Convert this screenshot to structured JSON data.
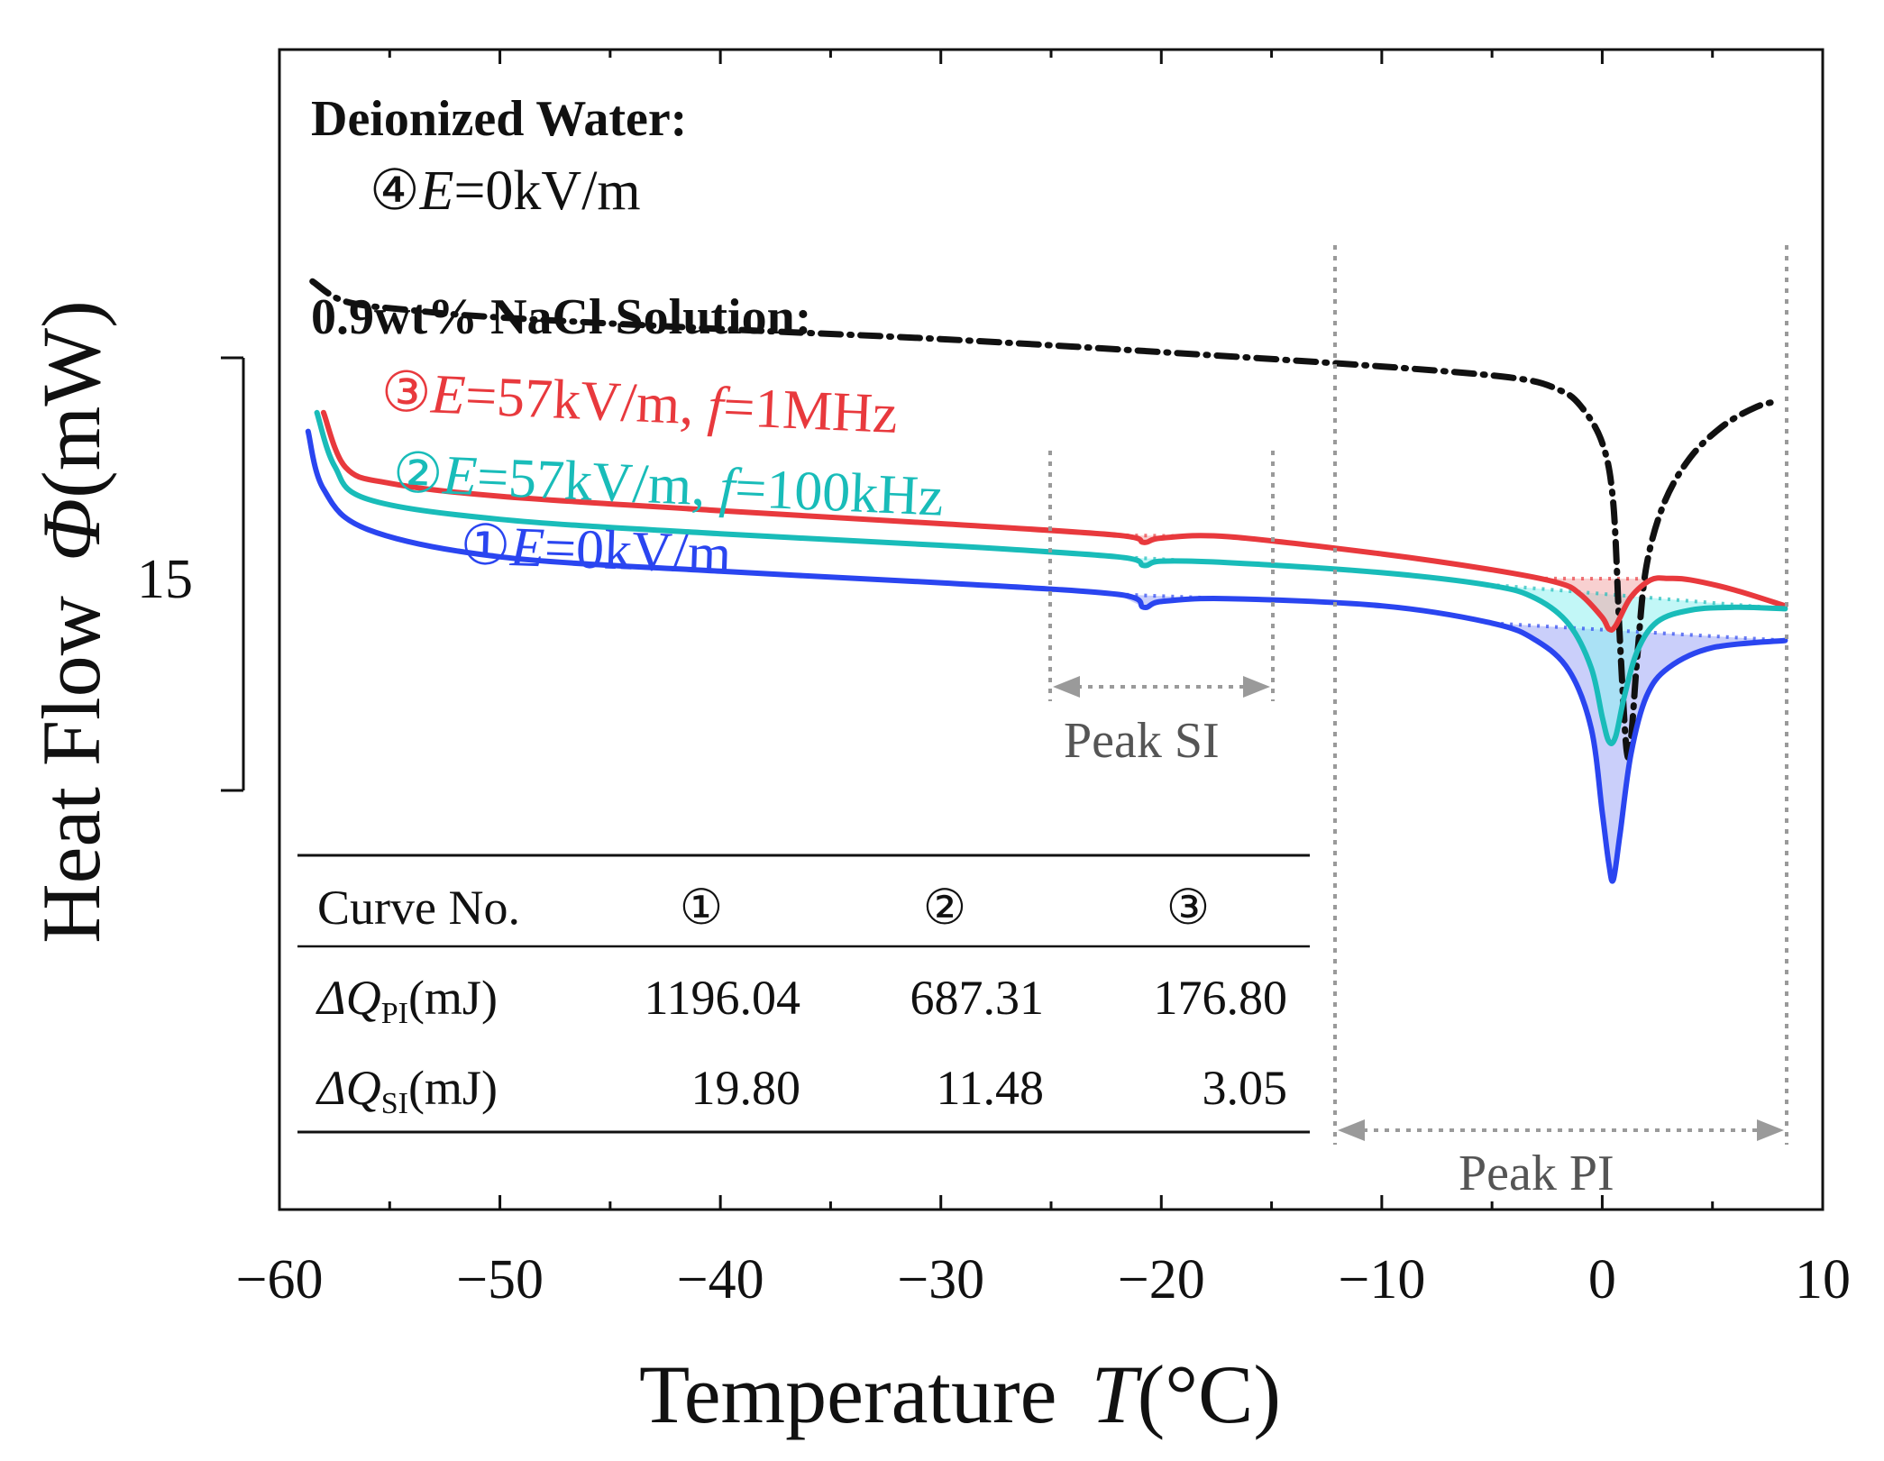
{
  "chart_data": {
    "type": "line",
    "title": "",
    "xlabel": "Temperature",
    "xlabel_symbol": "T",
    "xlabel_unit": "(°C)",
    "ylabel": "Heat Flow",
    "ylabel_symbol": "Φ",
    "ylabel_unit": "(mW)",
    "xlim": [
      -60,
      10
    ],
    "xticks": [
      -60,
      -50,
      -40,
      -30,
      -20,
      -10,
      0,
      10
    ],
    "xtick_labels": [
      "−60",
      "−50",
      "−40",
      "−30",
      "−20",
      "−10",
      "0",
      "10"
    ],
    "scale_bar": {
      "label": "15",
      "value_mW": 15
    },
    "groups": [
      {
        "label": "Deionized Water:"
      },
      {
        "label": "0.9wt% NaCl Solution:"
      }
    ],
    "series": [
      {
        "id": "c4",
        "number": "④",
        "name": "E=0kV/m",
        "label_parts": [
          "④",
          "E",
          "=0kV/m"
        ],
        "color": "#111111",
        "style": "dashdot",
        "group": "Deionized Water",
        "points": [
          [
            -58.5,
            8.9
          ],
          [
            -57,
            8.2
          ],
          [
            -54,
            7.9
          ],
          [
            -50,
            7.65
          ],
          [
            -40,
            7.25
          ],
          [
            -30,
            6.9
          ],
          [
            -20,
            6.45
          ],
          [
            -10,
            5.95
          ],
          [
            -4,
            5.55
          ],
          [
            -2,
            5.15
          ],
          [
            -1,
            4.6
          ],
          [
            0,
            3.3
          ],
          [
            0.5,
            1.2
          ],
          [
            0.8,
            -3.5
          ],
          [
            1.1,
            -7.3
          ],
          [
            1.3,
            -7.0
          ],
          [
            1.6,
            -4.0
          ],
          [
            2.0,
            -1.0
          ],
          [
            2.8,
            1.2
          ],
          [
            4,
            2.8
          ],
          [
            5.5,
            3.9
          ],
          [
            7,
            4.55
          ],
          [
            8,
            4.75
          ]
        ]
      },
      {
        "id": "c3",
        "number": "③",
        "name": "E=57kV/m, f=1MHz",
        "label_parts": [
          "③",
          "E",
          "=57kV/m, ",
          "f",
          "=1MHz"
        ],
        "color": "#e8393d",
        "style": "solid",
        "group": "0.9wt% NaCl Solution",
        "points": [
          [
            -58,
            4.35
          ],
          [
            -57,
            2.45
          ],
          [
            -55,
            1.9
          ],
          [
            -50,
            1.45
          ],
          [
            -40,
            0.95
          ],
          [
            -30,
            0.5
          ],
          [
            -22,
            0.1
          ],
          [
            -20.8,
            -0.15
          ],
          [
            -20,
            0.0
          ],
          [
            -17,
            0.05
          ],
          [
            -10,
            -0.55
          ],
          [
            -5,
            -1.1
          ],
          [
            -2,
            -1.55
          ],
          [
            -1,
            -1.95
          ],
          [
            0,
            -2.75
          ],
          [
            0.3,
            -3.15
          ],
          [
            0.6,
            -3.05
          ],
          [
            1.3,
            -2.05
          ],
          [
            2.2,
            -1.45
          ],
          [
            3,
            -1.4
          ],
          [
            4,
            -1.45
          ],
          [
            6,
            -1.8
          ],
          [
            8.3,
            -2.35
          ]
        ]
      },
      {
        "id": "c2",
        "number": "②",
        "name": "E=57kV/m, f=100kHz",
        "label_parts": [
          "②",
          "E",
          "=57kV/m, ",
          "f",
          "=100kHz"
        ],
        "color": "#19bcb9",
        "style": "solid",
        "group": "0.9wt% NaCl Solution",
        "points": [
          [
            -58.3,
            4.35
          ],
          [
            -57.5,
            2.5
          ],
          [
            -56,
            1.35
          ],
          [
            -50,
            0.65
          ],
          [
            -40,
            0.15
          ],
          [
            -30,
            -0.25
          ],
          [
            -22,
            -0.65
          ],
          [
            -20.8,
            -0.95
          ],
          [
            -20,
            -0.8
          ],
          [
            -17,
            -0.85
          ],
          [
            -10,
            -1.2
          ],
          [
            -5,
            -1.65
          ],
          [
            -3,
            -2.1
          ],
          [
            -1.5,
            -3.0
          ],
          [
            -0.5,
            -4.5
          ],
          [
            0,
            -6.2
          ],
          [
            0.3,
            -7.05
          ],
          [
            0.6,
            -6.9
          ],
          [
            1.0,
            -5.5
          ],
          [
            1.6,
            -3.9
          ],
          [
            2.5,
            -2.9
          ],
          [
            4,
            -2.5
          ],
          [
            6,
            -2.4
          ],
          [
            8.3,
            -2.45
          ]
        ]
      },
      {
        "id": "c1",
        "number": "①",
        "name": "E=0kV/m",
        "label_parts": [
          "①",
          "E",
          "=0kV/m"
        ],
        "color": "#2a45f0",
        "style": "solid",
        "group": "0.9wt% NaCl Solution",
        "points": [
          [
            -58.7,
            3.7
          ],
          [
            -58,
            1.7
          ],
          [
            -56,
            0.3
          ],
          [
            -50,
            -0.65
          ],
          [
            -40,
            -1.15
          ],
          [
            -30,
            -1.55
          ],
          [
            -22,
            -1.95
          ],
          [
            -20.8,
            -2.4
          ],
          [
            -20,
            -2.2
          ],
          [
            -17,
            -2.1
          ],
          [
            -10,
            -2.35
          ],
          [
            -5,
            -2.95
          ],
          [
            -3,
            -3.55
          ],
          [
            -1.5,
            -4.6
          ],
          [
            -0.5,
            -6.6
          ],
          [
            0,
            -9.5
          ],
          [
            0.3,
            -11.3
          ],
          [
            0.5,
            -11.85
          ],
          [
            0.8,
            -10.3
          ],
          [
            1.3,
            -7.5
          ],
          [
            2,
            -5.5
          ],
          [
            3,
            -4.5
          ],
          [
            5,
            -3.8
          ],
          [
            8.3,
            -3.55
          ]
        ]
      }
    ],
    "table": {
      "headers": [
        "Curve No.",
        "①",
        "②",
        "③"
      ],
      "rows": [
        {
          "label_symbol": "ΔQ",
          "label_sub": "PI",
          "label_unit": "(mJ)",
          "values": [
            "1196.04",
            "687.31",
            "176.80"
          ]
        },
        {
          "label_symbol": "ΔQ",
          "label_sub": "SI",
          "label_unit": "(mJ)",
          "values": [
            "19.80",
            "11.48",
            "3.05"
          ]
        }
      ]
    },
    "annotations": [
      {
        "label": "Peak SI",
        "x_range": [
          -25,
          -15
        ]
      },
      {
        "label": "Peak PI",
        "x_range": [
          -12,
          8.3
        ]
      }
    ]
  }
}
